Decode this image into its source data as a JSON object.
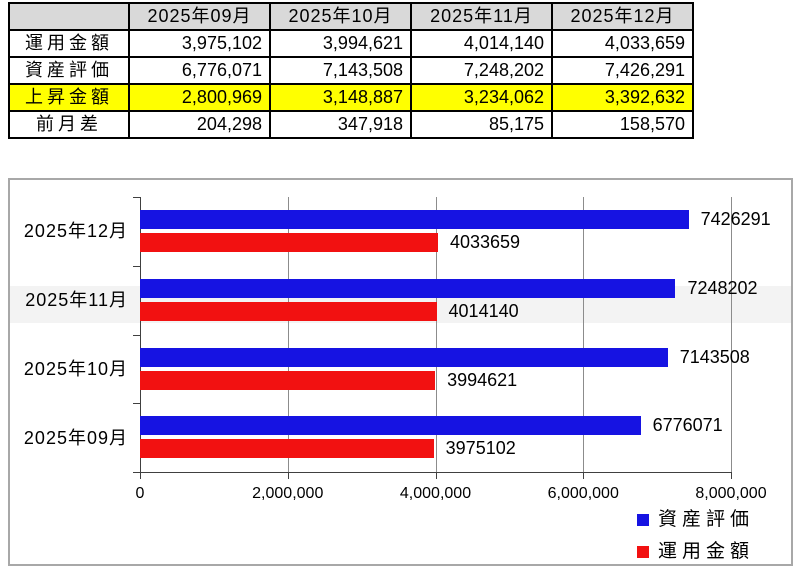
{
  "colors": {
    "bar_blue": "#1613e2",
    "bar_red": "#f21111",
    "header_gray": "#d9d9d9",
    "highlight_yellow": "#ffff00",
    "chart_border": "#a8a8a8",
    "gridline": "#8c8c8c",
    "axis": "#404040",
    "stripe": "#f3f3f3"
  },
  "table": {
    "header": [
      "",
      "2025年09月",
      "2025年10月",
      "2025年11月",
      "2025年12月"
    ],
    "rows": [
      {
        "label": "運用金額",
        "values": [
          "3,975,102",
          "3,994,621",
          "4,014,140",
          "4,033,659"
        ],
        "highlight": false
      },
      {
        "label": "資産評価",
        "values": [
          "6,776,071",
          "7,143,508",
          "7,248,202",
          "7,426,291"
        ],
        "highlight": false
      },
      {
        "label": "上昇金額",
        "values": [
          "2,800,969",
          "3,148,887",
          "3,234,062",
          "3,392,632"
        ],
        "highlight": true
      },
      {
        "label": "前月差",
        "values": [
          "204,298",
          "347,918",
          "85,175",
          "158,570"
        ],
        "highlight": false
      }
    ]
  },
  "chart_data": {
    "type": "bar",
    "orientation": "horizontal",
    "categories": [
      "2025年12月",
      "2025年11月",
      "2025年10月",
      "2025年09月"
    ],
    "series": [
      {
        "name": "資産評価",
        "color": "#1613e2",
        "values": [
          7426291,
          7248202,
          7143508,
          6776071
        ]
      },
      {
        "name": "運用金額",
        "color": "#f21111",
        "values": [
          4033659,
          4014140,
          3994621,
          3975102
        ]
      }
    ],
    "xlim": [
      0,
      8000000
    ],
    "x_ticks": [
      0,
      2000000,
      4000000,
      6000000,
      8000000
    ],
    "x_tick_labels": [
      "0",
      "2,000,000",
      "4,000,000",
      "6,000,000",
      "8,000,000"
    ],
    "grid": true,
    "data_labels": true,
    "legend_position": "bottom-right"
  }
}
